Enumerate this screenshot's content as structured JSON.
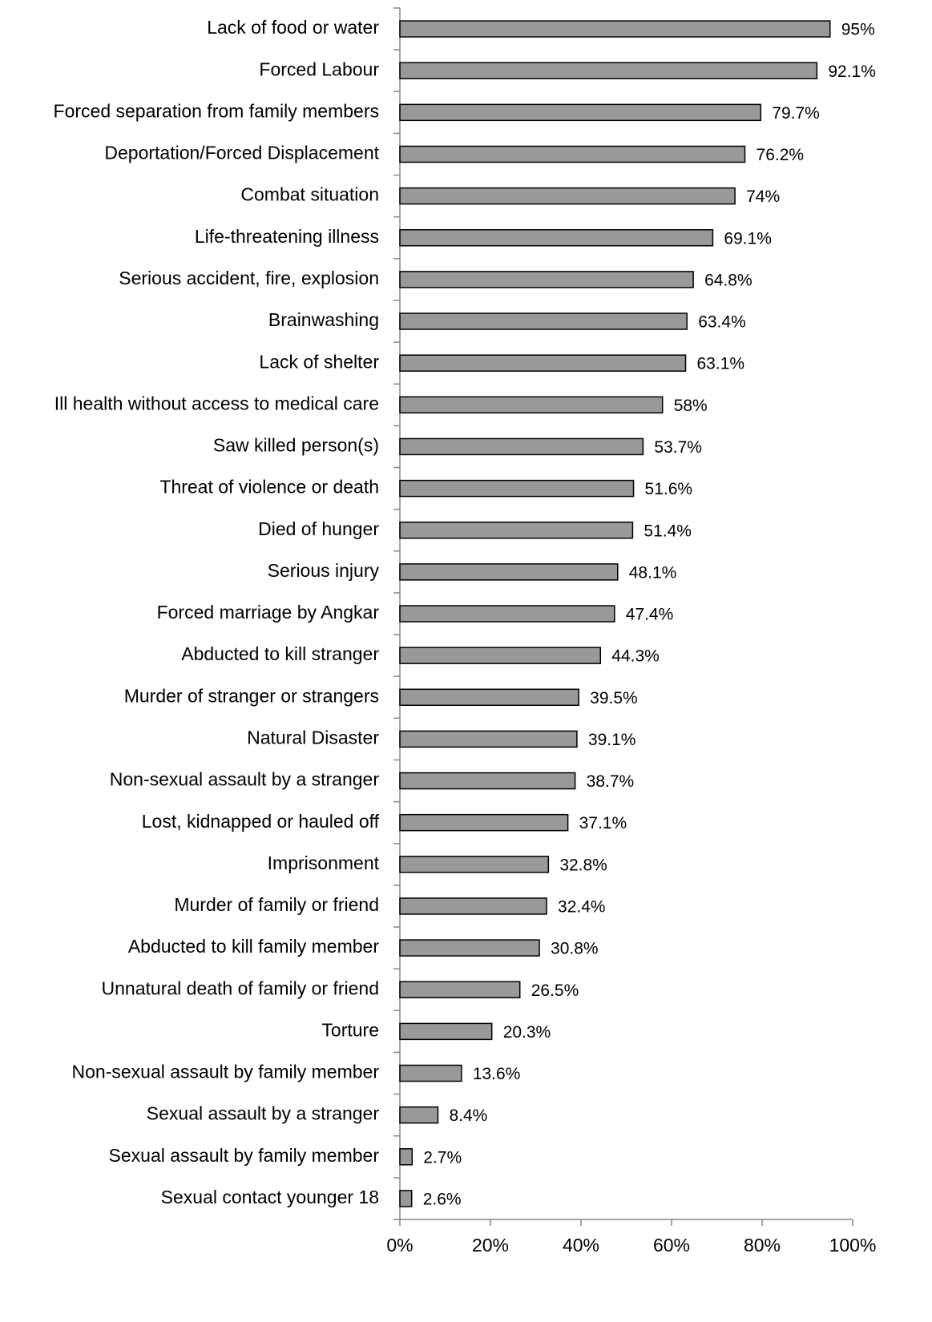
{
  "chart_data": {
    "type": "barh",
    "categories": [
      "Lack of food or water",
      "Forced Labour",
      "Forced separation from family members",
      "Deportation/Forced Displacement",
      "Combat situation",
      "Life-threatening illness",
      "Serious accident, fire, explosion",
      "Brainwashing",
      "Lack of shelter",
      "Ill health without access to medical care",
      "Saw killed person(s)",
      "Threat of violence or death",
      "Died of hunger",
      "Serious injury",
      "Forced marriage by Angkar",
      "Abducted to kill stranger",
      "Murder of stranger or strangers",
      "Natural Disaster",
      "Non-sexual assault by a stranger",
      "Lost, kidnapped or hauled off",
      "Imprisonment",
      "Murder of family or friend",
      "Abducted to kill family member",
      "Unnatural death of family or friend",
      "Torture",
      "Non-sexual assault by family member",
      "Sexual assault by a stranger",
      "Sexual assault by family member",
      "Sexual contact younger 18"
    ],
    "values": [
      95,
      92.1,
      79.7,
      76.2,
      74,
      69.1,
      64.8,
      63.4,
      63.1,
      58,
      53.7,
      51.6,
      51.4,
      48.1,
      47.4,
      44.3,
      39.5,
      39.1,
      38.7,
      37.1,
      32.8,
      32.4,
      30.8,
      26.5,
      20.3,
      13.6,
      8.4,
      2.7,
      2.6
    ],
    "value_labels": [
      "95%",
      "92.1%",
      "79.7%",
      "76.2%",
      "74%",
      "69.1%",
      "64.8%",
      "63.4%",
      "63.1%",
      "58%",
      "53.7%",
      "51.6%",
      "51.4%",
      "48.1%",
      "47.4%",
      "44.3%",
      "39.5%",
      "39.1%",
      "38.7%",
      "37.1%",
      "32.8%",
      "32.4%",
      "30.8%",
      "26.5%",
      "20.3%",
      "13.6%",
      "8.4%",
      "2.7%",
      "2.6%"
    ],
    "color": "#999999",
    "xlim": [
      0,
      100
    ],
    "xticks": [
      {
        "value": 0,
        "label": "0%"
      },
      {
        "value": 20,
        "label": "20%"
      },
      {
        "value": 40,
        "label": "40%"
      },
      {
        "value": 60,
        "label": "60%"
      },
      {
        "value": 80,
        "label": "80%"
      },
      {
        "value": 100,
        "label": "100%"
      }
    ],
    "grid": false
  }
}
